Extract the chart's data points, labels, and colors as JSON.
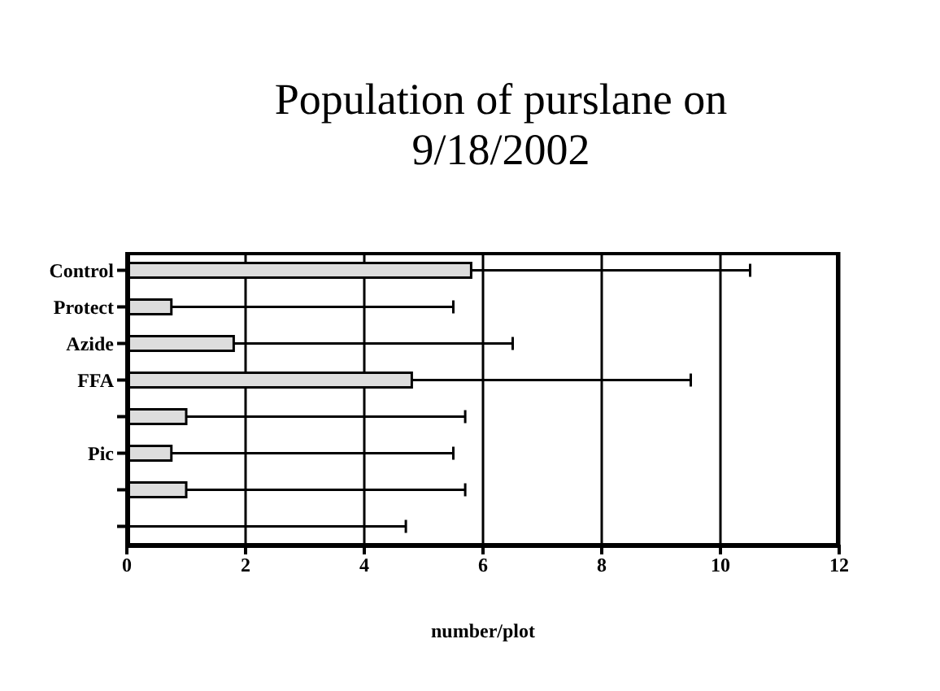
{
  "chart_data": {
    "type": "bar",
    "orientation": "horizontal",
    "title": "Population of purslane on 9/18/2002",
    "xlabel": "number/plot",
    "categories": [
      "Control",
      "Protect",
      "Azide",
      "FFA",
      null,
      "Pic",
      null,
      null
    ],
    "values": [
      5.8,
      0.75,
      1.8,
      4.8,
      1.0,
      0.75,
      1.0,
      0
    ],
    "errors": [
      [
        5.8,
        10.5
      ],
      [
        0.75,
        5.5
      ],
      [
        1.8,
        6.5
      ],
      [
        4.8,
        9.5
      ],
      [
        1.0,
        5.7
      ],
      [
        0.75,
        5.5
      ],
      [
        1.0,
        5.7
      ],
      [
        0,
        4.7
      ]
    ],
    "color": "#dddddd",
    "xlim": [
      0,
      12
    ],
    "xticks": [
      0,
      2,
      4,
      6,
      8,
      10,
      12
    ],
    "grid": "x",
    "legend": false
  }
}
